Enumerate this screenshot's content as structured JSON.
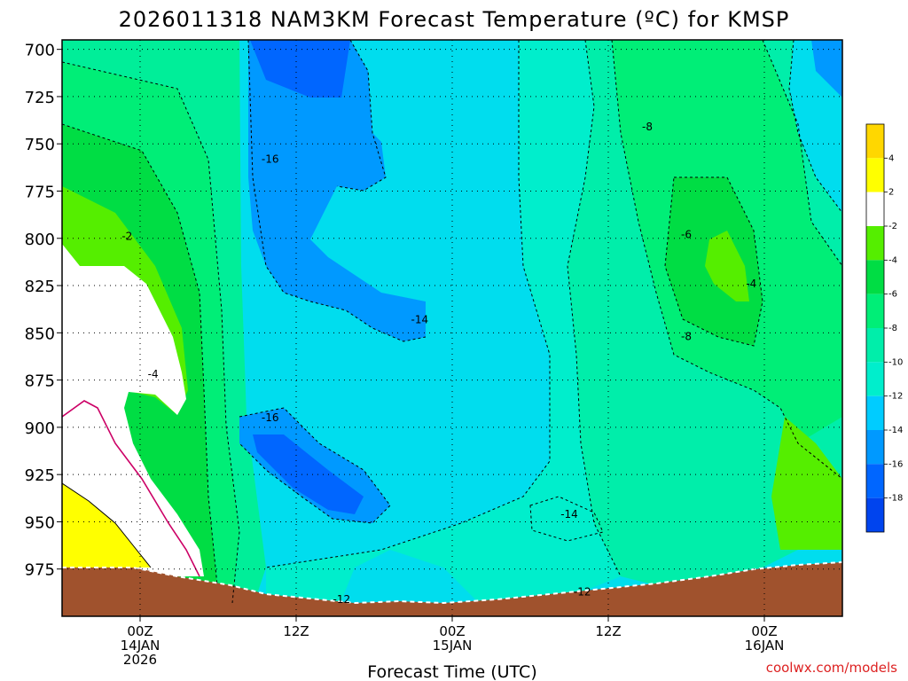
{
  "chart_data": {
    "type": "heatmap",
    "title": "2026011318 NAM3KM Forecast Temperature (ºC) for KMSP",
    "xlabel": "Forecast Time (UTC)",
    "ylabel": "",
    "y_ticks": [
      "700",
      "725",
      "750",
      "775",
      "800",
      "825",
      "850",
      "875",
      "900",
      "925",
      "950",
      "975"
    ],
    "y_values": [
      700,
      725,
      750,
      775,
      800,
      825,
      850,
      875,
      900,
      925,
      950,
      975
    ],
    "ylim": [
      695,
      1000
    ],
    "x_ticks": [
      {
        "hour": 6,
        "lines": [
          "00Z",
          "14JAN",
          "2026"
        ]
      },
      {
        "hour": 18,
        "lines": [
          "12Z"
        ]
      },
      {
        "hour": 30,
        "lines": [
          "00Z",
          "15JAN"
        ]
      },
      {
        "hour": 42,
        "lines": [
          "12Z"
        ]
      },
      {
        "hour": 54,
        "lines": [
          "00Z",
          "16JAN"
        ]
      }
    ],
    "xlim": [
      0,
      60
    ],
    "grid": true,
    "unit": "ºC",
    "colorbar": {
      "levels": [
        "4",
        "2",
        "-2",
        "-4",
        "-6",
        "-8",
        "-10",
        "-12",
        "-14",
        "-16",
        "-18"
      ],
      "colors": [
        "#ffd700",
        "#ffff00",
        "#ffffff",
        "#55ee00",
        "#00dd44",
        "#00ee77",
        "#00eeaa",
        "#00eecc",
        "#00ccff",
        "#0099ff",
        "#0066ff",
        "#0044ee"
      ]
    },
    "contour_labels": [
      {
        "text": "-16",
        "hour": 16.0,
        "pressure": 758
      },
      {
        "text": "-2",
        "hour": 5.0,
        "pressure": 799
      },
      {
        "text": "-14",
        "hour": 27.5,
        "pressure": 843
      },
      {
        "text": "-4",
        "hour": 7.0,
        "pressure": 872
      },
      {
        "text": "-16",
        "hour": 16.0,
        "pressure": 895
      },
      {
        "text": "-14",
        "hour": 39.0,
        "pressure": 946
      },
      {
        "text": "-12",
        "hour": 21.5,
        "pressure": 991
      },
      {
        "text": "-12",
        "hour": 40.0,
        "pressure": 987
      },
      {
        "text": "-8",
        "hour": 45.0,
        "pressure": 741
      },
      {
        "text": "-6",
        "hour": 48.0,
        "pressure": 798
      },
      {
        "text": "-4",
        "hour": 53.0,
        "pressure": 824
      },
      {
        "text": "-8",
        "hour": 48.0,
        "pressure": 852
      }
    ]
  },
  "credit": "coolwx.com/models"
}
